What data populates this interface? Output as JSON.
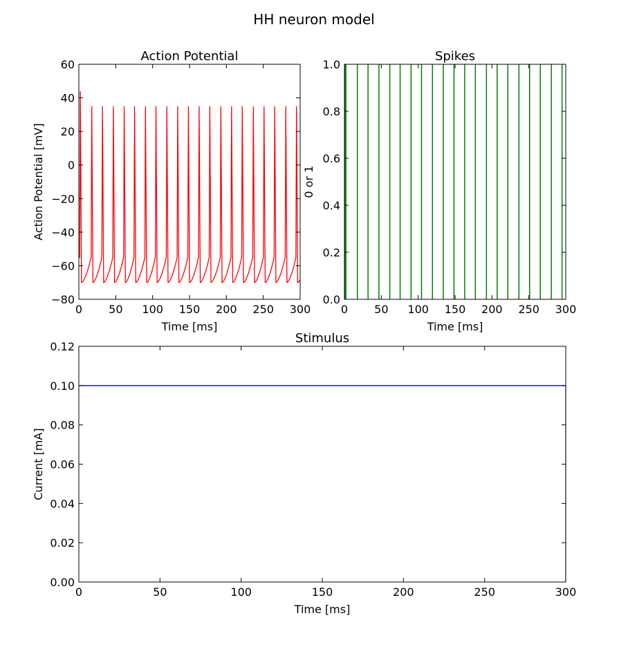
{
  "figure": {
    "title": "HH neuron model"
  },
  "colors": {
    "potential": "#ff0000",
    "spikes": "#007f00",
    "stimulus": "#0000ff",
    "axes": "#000000",
    "background": "#ffffff"
  },
  "chart_data": [
    {
      "id": "action-potential",
      "type": "line",
      "title": "Action Potential",
      "xlabel": "Time [ms]",
      "ylabel": "Action Potential [mV]",
      "xlim": [
        0,
        300
      ],
      "ylim": [
        -80,
        60
      ],
      "xticks": [
        0,
        50,
        100,
        150,
        200,
        250,
        300
      ],
      "yticks": [
        -80,
        -60,
        -40,
        -20,
        0,
        20,
        40,
        60
      ],
      "grid": false,
      "series": [
        {
          "color": "#ff0000",
          "initial_peak": 44,
          "spike_peak": 35,
          "trough": -70,
          "threshold": -55,
          "spike_times": [
            2,
            17.5,
            32,
            46.8,
            61.5,
            75.5,
            90.3,
            104.5,
            119.3,
            134,
            148.5,
            163,
            177.5,
            192.5,
            207,
            221.5,
            236.5,
            251,
            265.5,
            280.5,
            295
          ]
        }
      ]
    },
    {
      "id": "spikes",
      "type": "line",
      "title": "Spikes",
      "xlabel": "Time [ms]",
      "ylabel": "0 or 1",
      "xlim": [
        0,
        300
      ],
      "ylim": [
        0.0,
        1.0
      ],
      "xticks": [
        0,
        50,
        100,
        150,
        200,
        250,
        300
      ],
      "yticks": [
        0.0,
        0.2,
        0.4,
        0.6,
        0.8,
        1.0
      ],
      "grid": false,
      "series": [
        {
          "color": "#007f00",
          "spike_times": [
            0.8,
            2,
            17.5,
            32,
            46.8,
            61.5,
            75.5,
            90.3,
            104.5,
            119.3,
            134,
            148.5,
            163,
            177.5,
            192.5,
            207,
            221.5,
            236.5,
            251,
            265.5,
            280.5,
            295
          ]
        }
      ]
    },
    {
      "id": "stimulus",
      "type": "line",
      "title": "Stimulus",
      "xlabel": "Time [ms]",
      "ylabel": "Current [mA]",
      "xlim": [
        0,
        300
      ],
      "ylim": [
        0.0,
        0.12
      ],
      "xticks": [
        0,
        50,
        100,
        150,
        200,
        250,
        300
      ],
      "yticks": [
        0.0,
        0.02,
        0.04,
        0.06,
        0.08,
        0.1,
        0.12
      ],
      "grid": false,
      "series": [
        {
          "color": "#0000ff",
          "x": [
            0,
            300,
            300
          ],
          "y": [
            0.1,
            0.1,
            0.0
          ]
        }
      ]
    }
  ]
}
